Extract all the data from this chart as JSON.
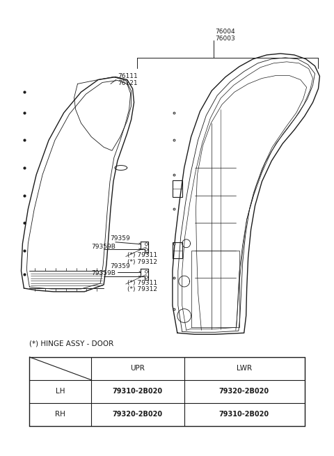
{
  "bg_color": "#ffffff",
  "line_color": "#1a1a1a",
  "text_color": "#1a1a1a",
  "label_fontsize": 6.5,
  "table_fontsize": 7.5,
  "title_text": "(*) HINGE ASSY - DOOR",
  "label_76004": "76004",
  "label_76003": "76003",
  "label_76111": "76111",
  "label_76121": "76121",
  "label_79359_u": "79359",
  "label_79359B_u": "79359B",
  "label_79311_u": "(*) 79311",
  "label_79312_u": "(*) 79312",
  "label_79359_l": "79359",
  "label_79359B_l": "79359B",
  "label_79311_l": "(*) 79311",
  "label_79312_l": "(*) 79312",
  "table_headers": [
    "",
    "UPR",
    "LWR"
  ],
  "table_row1": [
    "LH",
    "79310-2B020",
    "79320-2B020"
  ],
  "table_row2": [
    "RH",
    "79320-2B020",
    "79310-2B020"
  ]
}
